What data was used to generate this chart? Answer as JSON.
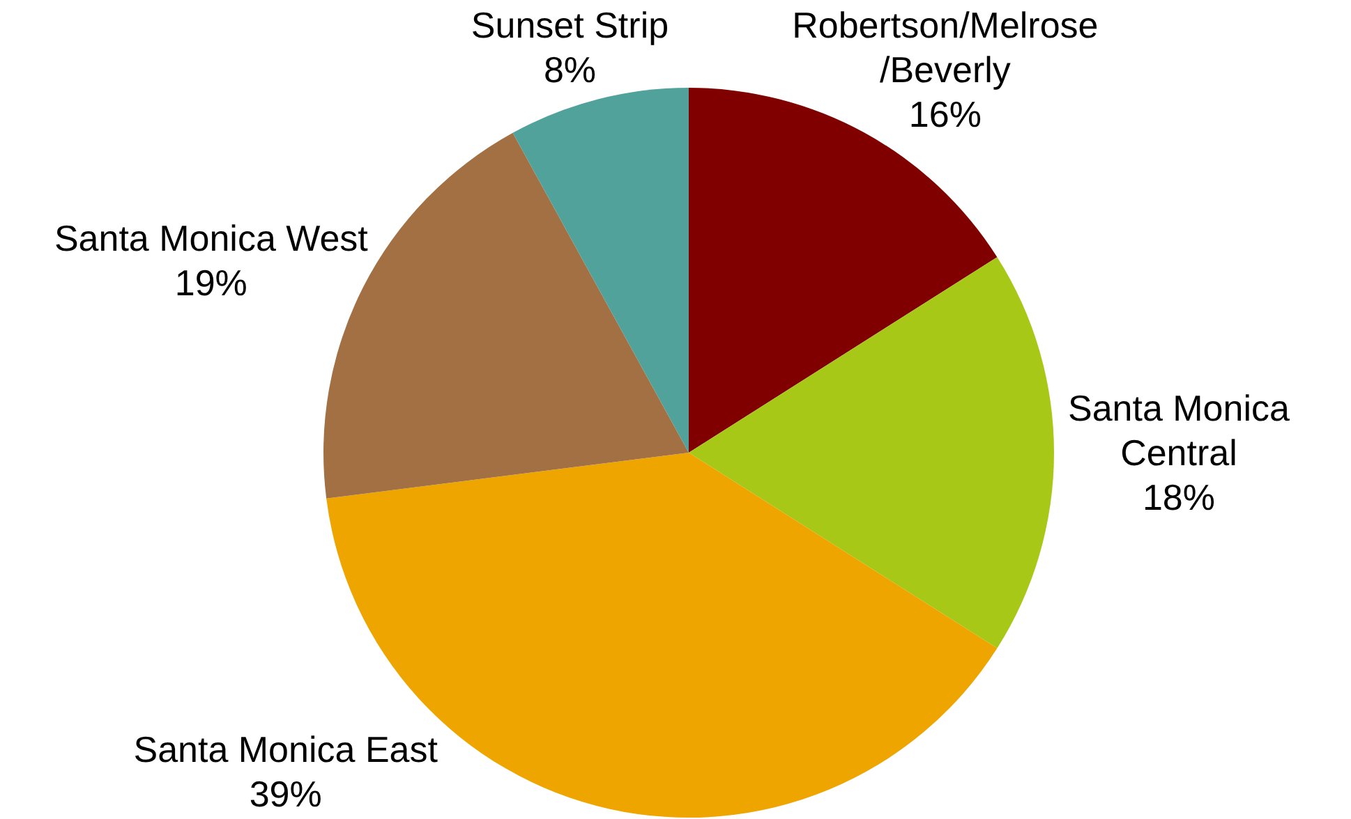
{
  "chart_data": {
    "type": "pie",
    "categories": [
      "Robertson/Melrose/Beverly",
      "Santa Monica Central",
      "Santa Monica East",
      "Santa Monica West",
      "Sunset Strip"
    ],
    "values": [
      16,
      18,
      39,
      19,
      8
    ],
    "colors": [
      "#800000",
      "#a8c818",
      "#eea500",
      "#a37044",
      "#50a29a"
    ],
    "value_labels": [
      "16%",
      "18%",
      "39%",
      "19%",
      "8%"
    ]
  }
}
